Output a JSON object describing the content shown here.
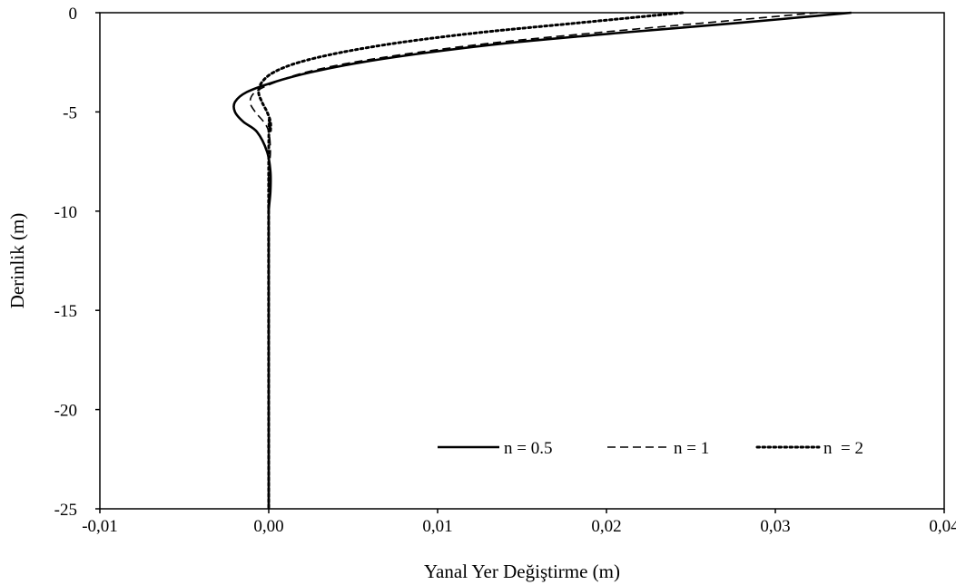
{
  "chart_data": {
    "type": "line",
    "title": "",
    "xlabel": "Yanal Yer Değiştirme (m)",
    "ylabel": "Derinlik (m)",
    "xlim": [
      -0.01,
      0.04
    ],
    "ylim": [
      -25,
      0
    ],
    "x_ticks": [
      -0.01,
      0.0,
      0.01,
      0.02,
      0.03,
      0.04
    ],
    "x_tick_labels": [
      "-0,01",
      "0,00",
      "0,01",
      "0,02",
      "0,03",
      "0,04"
    ],
    "y_ticks": [
      0,
      -5,
      -10,
      -15,
      -20,
      -25
    ],
    "y_tick_labels": [
      "0",
      "-5",
      "-10",
      "-15",
      "-20",
      "-25"
    ],
    "grid": false,
    "legend_position": "bottom-right",
    "series": [
      {
        "name": "n = 0.5",
        "style": "solid",
        "x": [
          0.0345,
          0.028,
          0.021,
          0.0145,
          0.0095,
          0.0055,
          0.0025,
          0.0003,
          -0.0013,
          -0.002,
          -0.002,
          -0.0015,
          -0.0007,
          -0.0001,
          0.0001,
          0.0001,
          0.0,
          0.0
        ],
        "y": [
          0,
          -0.5,
          -1,
          -1.5,
          -2,
          -2.5,
          -3,
          -3.5,
          -4,
          -4.5,
          -5,
          -5.5,
          -6,
          -7,
          -8,
          -9,
          -10,
          -11
        ]
      },
      {
        "name": "n = 1",
        "style": "dashed",
        "x": [
          0.0325,
          0.026,
          0.0195,
          0.0135,
          0.0088,
          0.005,
          0.0022,
          0.0004,
          -0.0008,
          -0.0011,
          -0.0008,
          -0.0003,
          0.0,
          0.0001,
          0.0,
          0.0,
          0.0
        ],
        "y": [
          0,
          -0.5,
          -1,
          -1.5,
          -2,
          -2.5,
          -3,
          -3.5,
          -4,
          -4.5,
          -5,
          -5.5,
          -6,
          -7,
          -8,
          -9,
          -10
        ]
      },
      {
        "name": "n  = 2",
        "style": "dotted",
        "x": [
          0.0245,
          0.0185,
          0.0125,
          0.0078,
          0.0043,
          0.0018,
          0.0003,
          -0.0004,
          -0.0006,
          -0.0004,
          -0.0001,
          0.0001,
          0.0001,
          0.0
        ],
        "y": [
          0,
          -0.5,
          -1,
          -1.5,
          -2,
          -2.5,
          -3,
          -3.5,
          -4,
          -4.5,
          -5,
          -5.5,
          -6,
          -7
        ]
      }
    ]
  }
}
